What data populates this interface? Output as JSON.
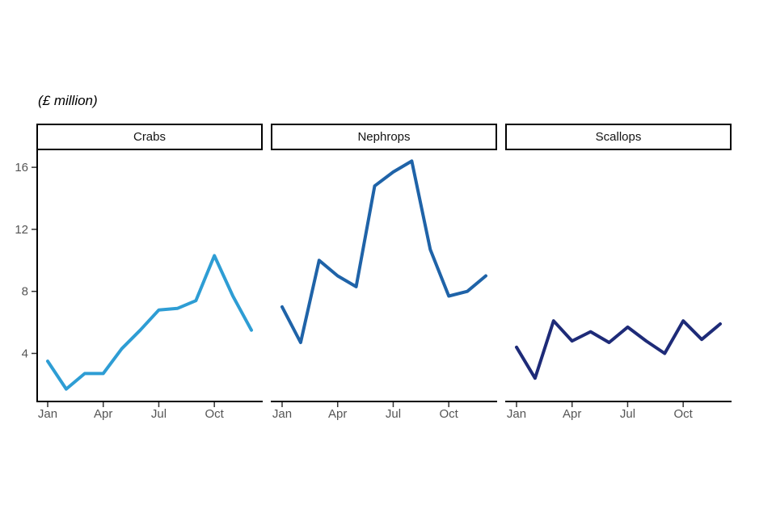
{
  "title": "(£ million)",
  "chart_data": {
    "type": "line",
    "title": "(£ million)",
    "facet_layout": "three horizontal panels, shared y axis",
    "x": [
      "Jan",
      "Feb",
      "Mar",
      "Apr",
      "May",
      "Jun",
      "Jul",
      "Aug",
      "Sep",
      "Oct",
      "Nov",
      "Dec"
    ],
    "x_tick_months": [
      0,
      3,
      6,
      9
    ],
    "x_tick_labels": [
      "Jan",
      "Apr",
      "Jul",
      "Oct"
    ],
    "y_ticks": [
      4,
      8,
      12,
      16
    ],
    "ylim": [
      0.9,
      17.1
    ],
    "ylabel": "(£ million)",
    "xlabel": "",
    "grid": false,
    "legend": "none",
    "facets": [
      {
        "name": "Crabs",
        "color": "#2E9DD4",
        "values": [
          3.5,
          1.7,
          2.7,
          2.7,
          4.3,
          5.5,
          6.8,
          6.9,
          7.4,
          10.3,
          7.7,
          5.5
        ]
      },
      {
        "name": "Nephrops",
        "color": "#1F63A8",
        "values": [
          7.0,
          4.7,
          10.0,
          9.0,
          8.3,
          14.8,
          15.7,
          16.4,
          10.7,
          7.7,
          8.0,
          9.0
        ]
      },
      {
        "name": "Scallops",
        "color": "#1E2B78",
        "values": [
          4.4,
          2.4,
          6.1,
          4.8,
          5.4,
          4.7,
          5.7,
          4.8,
          4.0,
          6.1,
          4.9,
          5.9
        ]
      }
    ]
  },
  "colors": {
    "background": "#ffffff",
    "axis_line": "#000000",
    "tick_mark": "#333333",
    "tick_label": "#555555",
    "strip_border": "#000000",
    "strip_background": "#ffffff",
    "strip_text": "#141414",
    "title_text": "#000000"
  }
}
